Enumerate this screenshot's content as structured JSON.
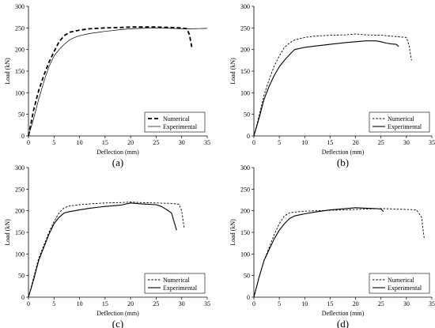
{
  "chart_data": [
    {
      "type": "line",
      "panel_label": "(a)",
      "xlabel": "Deflection (mm)",
      "ylabel": "Load (kN)",
      "xlim": [
        0,
        35
      ],
      "ylim": [
        0,
        300
      ],
      "xticks": [
        0,
        5,
        10,
        15,
        20,
        25,
        30,
        35
      ],
      "yticks": [
        0,
        50,
        100,
        150,
        200,
        250,
        300
      ],
      "grid": false,
      "legend_position": "bottom-right",
      "series": [
        {
          "name": "Numerical",
          "style": "bold-dashed",
          "x": [
            0,
            1,
            2,
            3,
            4,
            5,
            6,
            7,
            8,
            10,
            12,
            15,
            18,
            20,
            22,
            25,
            28,
            30,
            31,
            31.5,
            32
          ],
          "y": [
            0,
            60,
            105,
            140,
            170,
            195,
            218,
            232,
            240,
            245,
            248,
            250,
            251,
            252,
            252,
            252,
            251,
            250,
            248,
            235,
            205
          ]
        },
        {
          "name": "Experimental",
          "style": "thin-solid",
          "x": [
            0,
            1,
            2,
            3,
            4,
            5,
            6,
            7,
            8,
            9,
            10,
            12,
            15,
            18,
            20,
            22,
            25,
            28,
            30,
            32,
            35
          ],
          "y": [
            0,
            40,
            85,
            125,
            160,
            185,
            200,
            212,
            222,
            228,
            232,
            237,
            242,
            246,
            248,
            249,
            250,
            249,
            248,
            248,
            249
          ]
        }
      ]
    },
    {
      "type": "line",
      "panel_label": "(b)",
      "xlabel": "Deflection (mm)",
      "ylabel": "Load (kN)",
      "xlim": [
        0,
        35
      ],
      "ylim": [
        0,
        300
      ],
      "xticks": [
        0,
        5,
        10,
        15,
        20,
        25,
        30,
        35
      ],
      "yticks": [
        0,
        50,
        100,
        150,
        200,
        250,
        300
      ],
      "grid": false,
      "legend_position": "bottom-right",
      "series": [
        {
          "name": "Numerical",
          "style": "dashed",
          "x": [
            0,
            1,
            2,
            3,
            4,
            5,
            6,
            7,
            8,
            10,
            12,
            15,
            18,
            20,
            22,
            25,
            28,
            30,
            30.5,
            31
          ],
          "y": [
            0,
            45,
            95,
            130,
            162,
            185,
            205,
            215,
            222,
            228,
            231,
            233,
            234,
            236,
            234,
            233,
            230,
            228,
            210,
            175
          ]
        },
        {
          "name": "Experimental",
          "style": "solid",
          "x": [
            0,
            1,
            2,
            3,
            4,
            5,
            6,
            7,
            8,
            10,
            12,
            15,
            18,
            20,
            22,
            24,
            25,
            26,
            27,
            28,
            28.5
          ],
          "y": [
            0,
            40,
            85,
            115,
            140,
            160,
            175,
            188,
            200,
            205,
            208,
            212,
            216,
            218,
            220,
            220,
            218,
            215,
            213,
            212,
            207
          ]
        }
      ]
    },
    {
      "type": "line",
      "panel_label": "(c)",
      "xlabel": "Deflection (mm)",
      "ylabel": "Load (kN)",
      "xlim": [
        0,
        35
      ],
      "ylim": [
        0,
        300
      ],
      "xticks": [
        0,
        5,
        10,
        15,
        20,
        25,
        30,
        35
      ],
      "yticks": [
        0,
        50,
        100,
        150,
        200,
        250,
        300
      ],
      "grid": false,
      "legend_position": "bottom-right",
      "series": [
        {
          "name": "Numerical",
          "style": "dashed",
          "x": [
            0,
            1,
            2,
            3,
            4,
            5,
            6,
            7,
            8,
            10,
            12,
            15,
            18,
            20,
            22,
            25,
            28,
            29.5,
            30,
            30.5
          ],
          "y": [
            0,
            45,
            90,
            120,
            150,
            175,
            195,
            207,
            211,
            214,
            216,
            218,
            219,
            220,
            219,
            218,
            217,
            215,
            200,
            160
          ]
        },
        {
          "name": "Experimental",
          "style": "solid",
          "x": [
            0,
            1,
            2,
            3,
            4,
            5,
            6,
            7,
            8,
            10,
            12,
            15,
            18,
            20,
            22,
            25,
            26,
            27,
            28,
            29
          ],
          "y": [
            0,
            40,
            85,
            115,
            145,
            170,
            185,
            195,
            198,
            202,
            206,
            210,
            213,
            218,
            216,
            214,
            210,
            203,
            195,
            155
          ]
        }
      ]
    },
    {
      "type": "line",
      "panel_label": "(d)",
      "xlabel": "Deflection (mm)",
      "ylabel": "Load (kN)",
      "xlim": [
        0,
        35
      ],
      "ylim": [
        0,
        300
      ],
      "xticks": [
        0,
        5,
        10,
        15,
        20,
        25,
        30,
        35
      ],
      "yticks": [
        0,
        50,
        100,
        150,
        200,
        250,
        300
      ],
      "grid": false,
      "legend_position": "bottom-right",
      "series": [
        {
          "name": "Numerical",
          "style": "dashed",
          "x": [
            0,
            1,
            2,
            3,
            4,
            5,
            6,
            7,
            8,
            10,
            12,
            15,
            18,
            20,
            22,
            25,
            28,
            30,
            32,
            33,
            33.5
          ],
          "y": [
            0,
            45,
            85,
            115,
            145,
            170,
            188,
            195,
            197,
            199,
            200,
            201,
            202,
            203,
            204,
            205,
            204,
            203,
            202,
            185,
            135
          ]
        },
        {
          "name": "Experimental",
          "style": "solid",
          "x": [
            0,
            1,
            2,
            3,
            4,
            5,
            6,
            7,
            8,
            10,
            12,
            15,
            18,
            20,
            22,
            24,
            25,
            25.5
          ],
          "y": [
            0,
            45,
            85,
            110,
            135,
            155,
            170,
            182,
            188,
            193,
            197,
            202,
            205,
            207,
            206,
            205,
            204,
            198
          ]
        }
      ]
    }
  ]
}
